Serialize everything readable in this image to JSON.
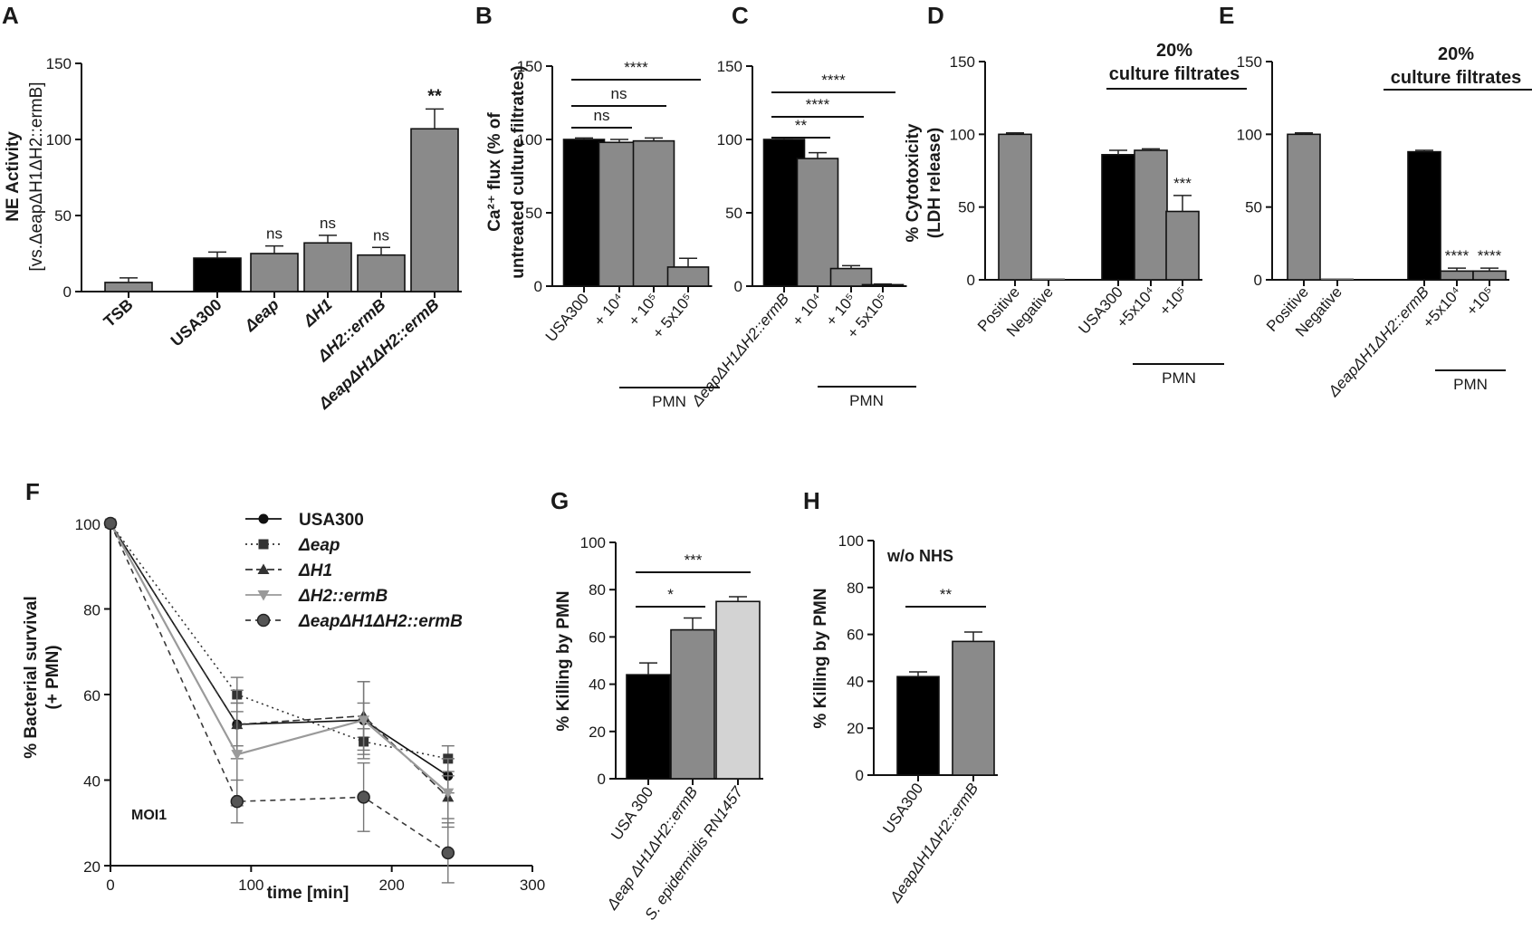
{
  "panel_labels": [
    "A",
    "B",
    "C",
    "D",
    "E",
    "F",
    "G",
    "H"
  ],
  "chart_data": [
    {
      "id": "A",
      "type": "bar",
      "ylabel_lines": [
        "NE Activity",
        "[vs.ΔeapΔH1ΔH2::ermB]"
      ],
      "ylim": [
        0,
        150
      ],
      "yticks": [
        0,
        50,
        100,
        150
      ],
      "categories": [
        "TSB",
        "USA300",
        "Δeap",
        "ΔH1",
        "ΔH2::ermB",
        "ΔeapΔH1ΔH2::ermB"
      ],
      "values": [
        6,
        22,
        25,
        32,
        24,
        107
      ],
      "errors": [
        3,
        4,
        5,
        5,
        5,
        13
      ],
      "colors": [
        "#8a8a8a",
        "#000000",
        "#8a8a8a",
        "#8a8a8a",
        "#8a8a8a",
        "#8a8a8a"
      ],
      "bar_labels": [
        "",
        "",
        "ns",
        "ns",
        "ns",
        "**"
      ]
    },
    {
      "id": "B",
      "type": "bar",
      "ylabel_lines": [
        "Ca²⁺ flux (% of",
        "untreated culture filtrates)"
      ],
      "ylim": [
        0,
        150
      ],
      "yticks": [
        0,
        50,
        100,
        150
      ],
      "categories": [
        "USA300",
        "+ 10⁴",
        "+ 10⁵",
        "+ 5x10⁵"
      ],
      "values": [
        100,
        98,
        99,
        13
      ],
      "errors": [
        1,
        2,
        2,
        6
      ],
      "colors": [
        "#000000",
        "#8a8a8a",
        "#8a8a8a",
        "#8a8a8a"
      ],
      "brackets": [
        {
          "from": 0,
          "to": 1,
          "label": "ns"
        },
        {
          "from": 0,
          "to": 2,
          "label": "ns"
        },
        {
          "from": 0,
          "to": 3,
          "label": "****"
        }
      ],
      "group_label": "PMN"
    },
    {
      "id": "C",
      "type": "bar",
      "ylim": [
        0,
        150
      ],
      "yticks": [
        0,
        50,
        100,
        150
      ],
      "categories": [
        "ΔeapΔH1ΔH2::ermB",
        "+ 10⁴",
        "+ 10⁵",
        "+ 5x10⁵"
      ],
      "values": [
        100,
        87,
        12,
        1
      ],
      "errors": [
        1,
        4,
        2,
        0.5
      ],
      "colors": [
        "#000000",
        "#8a8a8a",
        "#8a8a8a",
        "#8a8a8a"
      ],
      "brackets": [
        {
          "from": 0,
          "to": 1,
          "label": "**"
        },
        {
          "from": 0,
          "to": 2,
          "label": "****"
        },
        {
          "from": 0,
          "to": 3,
          "label": "****"
        }
      ],
      "group_label": "PMN"
    },
    {
      "id": "D",
      "type": "bar",
      "ylabel_lines": [
        "% Cytotoxicity",
        "(LDH release)"
      ],
      "ylim": [
        0,
        150
      ],
      "yticks": [
        0,
        50,
        100,
        150
      ],
      "categories": [
        "Positive",
        "Negative",
        "USA300",
        "+5x10⁴",
        "+10⁵"
      ],
      "values": [
        100,
        0,
        86,
        89,
        47
      ],
      "errors": [
        1,
        0,
        3,
        1,
        11
      ],
      "colors": [
        "#8a8a8a",
        "#8a8a8a",
        "#000000",
        "#8a8a8a",
        "#8a8a8a"
      ],
      "bar_labels": [
        "",
        "",
        "",
        "",
        "***"
      ],
      "header": [
        "20%",
        "culture filtrates"
      ],
      "group_label": "PMN"
    },
    {
      "id": "E",
      "type": "bar",
      "ylim": [
        0,
        150
      ],
      "yticks": [
        0,
        50,
        100,
        150
      ],
      "categories": [
        "Positive",
        "Negative",
        "ΔeapΔH1ΔH2::ermB",
        "+5x10⁴",
        "+10⁵"
      ],
      "values": [
        100,
        0,
        88,
        6,
        6
      ],
      "errors": [
        1,
        0,
        1,
        2,
        2
      ],
      "colors": [
        "#8a8a8a",
        "#8a8a8a",
        "#000000",
        "#8a8a8a",
        "#8a8a8a"
      ],
      "bar_labels": [
        "",
        "",
        "",
        "****",
        "****"
      ],
      "header": [
        "20%",
        "culture filtrates"
      ],
      "group_label": "PMN"
    },
    {
      "id": "F",
      "type": "line",
      "xlabel": "time [min]",
      "ylabel_lines": [
        "% Bacterial survival",
        "(+ PMN)"
      ],
      "xlim": [
        0,
        300
      ],
      "xticks": [
        0,
        100,
        200,
        300
      ],
      "ylim": [
        20,
        100
      ],
      "yticks": [
        20,
        40,
        60,
        80,
        100
      ],
      "annotation": "MOI1",
      "series": [
        {
          "name": "USA300",
          "x": [
            0,
            90,
            180,
            240
          ],
          "y": [
            100,
            53,
            54,
            41
          ],
          "err": [
            0,
            5,
            4,
            4
          ],
          "color": "#111111",
          "marker": "circle",
          "dash": ""
        },
        {
          "name": "Δeap",
          "x": [
            0,
            90,
            180,
            240
          ],
          "y": [
            100,
            60,
            49,
            45
          ],
          "err": [
            0,
            4,
            3,
            3
          ],
          "color": "#333333",
          "marker": "square",
          "dash": "2,4"
        },
        {
          "name": "ΔH1",
          "x": [
            0,
            90,
            180,
            240
          ],
          "y": [
            100,
            53,
            55,
            36
          ],
          "err": [
            0,
            8,
            8,
            5
          ],
          "color": "#333333",
          "marker": "triangle",
          "dash": "8,4"
        },
        {
          "name": "ΔH2::ermB",
          "x": [
            0,
            90,
            180,
            240
          ],
          "y": [
            100,
            46,
            54,
            37
          ],
          "err": [
            0,
            12,
            9,
            8
          ],
          "color": "#9a9a9a",
          "marker": "tridown",
          "dash": ""
        },
        {
          "name": "ΔeapΔH1ΔH2::ermB",
          "x": [
            0,
            90,
            180,
            240
          ],
          "y": [
            100,
            35,
            36,
            23
          ],
          "err": [
            0,
            5,
            8,
            7
          ],
          "color": "#3a3a3a",
          "marker": "bigcircle",
          "dash": "6,5"
        }
      ]
    },
    {
      "id": "G",
      "type": "bar",
      "ylabel_lines": [
        "% Killing by PMN"
      ],
      "ylim": [
        0,
        100
      ],
      "yticks": [
        0,
        20,
        40,
        60,
        80,
        100
      ],
      "categories": [
        "USA 300",
        "Δeap ΔH1ΔH2::ermB",
        "S. epidermidis RN1457"
      ],
      "values": [
        44,
        63,
        75
      ],
      "errors": [
        5,
        5,
        2
      ],
      "colors": [
        "#000000",
        "#8a8a8a",
        "#d3d3d3"
      ],
      "brackets": [
        {
          "from": 0,
          "to": 1,
          "label": "*"
        },
        {
          "from": 0,
          "to": 2,
          "label": "***"
        }
      ]
    },
    {
      "id": "H",
      "type": "bar",
      "ylabel_lines": [
        "% Killing by PMN"
      ],
      "ylim": [
        0,
        100
      ],
      "yticks": [
        0,
        20,
        40,
        60,
        80,
        100
      ],
      "categories": [
        "USA300",
        "ΔeapΔH1ΔH2::ermB"
      ],
      "values": [
        42,
        57
      ],
      "errors": [
        2,
        4
      ],
      "colors": [
        "#000000",
        "#8a8a8a"
      ],
      "annotation": "w/o NHS",
      "brackets": [
        {
          "from": 0,
          "to": 1,
          "label": "**"
        }
      ]
    }
  ]
}
